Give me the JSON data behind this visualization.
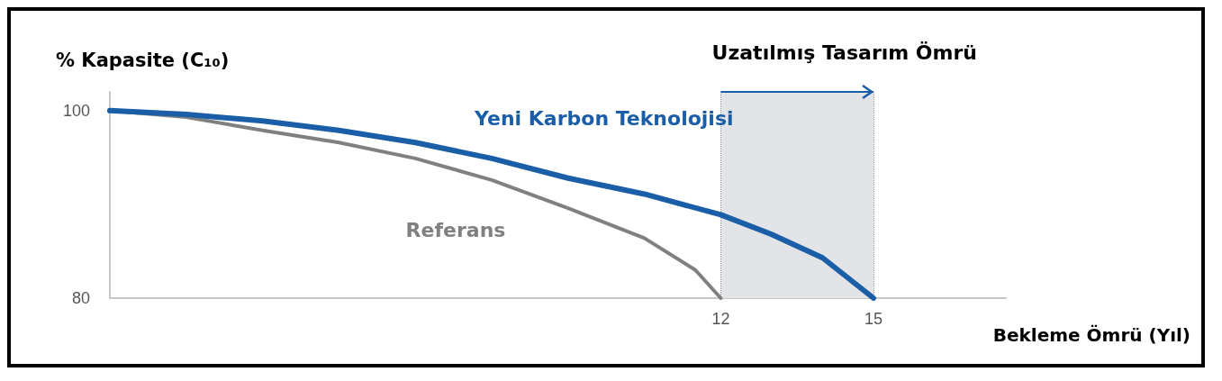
{
  "chart_data": {
    "type": "line",
    "ylabel": "% Kapasite (C₁₀)",
    "xlabel": "Bekleme Ömrü (Yıl)",
    "xlim": [
      0,
      17.6
    ],
    "xticks": [
      12,
      15
    ],
    "ylim": [
      80,
      102
    ],
    "yticks": [
      80,
      100
    ],
    "grid": false,
    "legend": false,
    "marker": "none",
    "line_style": "solid",
    "series": [
      {
        "name": "Referans",
        "color": "#808080",
        "x": [
          0,
          1.5,
          3,
          4.5,
          6,
          7.5,
          9,
          10.5,
          11.5,
          12
        ],
        "values": [
          100,
          99.3,
          97.9,
          96.6,
          94.9,
          92.6,
          89.6,
          86.4,
          83,
          80
        ]
      },
      {
        "name": "Yeni Karbon Teknolojisi",
        "color": "#1a5ea8",
        "x": [
          0,
          1.5,
          3,
          4.5,
          6,
          7.5,
          9,
          10.5,
          12,
          13,
          14,
          15
        ],
        "values": [
          100,
          99.6,
          98.9,
          97.9,
          96.6,
          94.9,
          92.8,
          91.1,
          88.9,
          86.8,
          84.3,
          80
        ]
      }
    ],
    "bands": [
      {
        "axis": "x",
        "from": 12,
        "to": 15,
        "label": "Uzatılmış Tasarım Ömrü",
        "color": "#e3e4e7"
      }
    ],
    "ref_lines": [
      {
        "axis": "x",
        "value": 12,
        "label": null
      },
      {
        "axis": "x",
        "value": 15,
        "label": null
      }
    ]
  }
}
